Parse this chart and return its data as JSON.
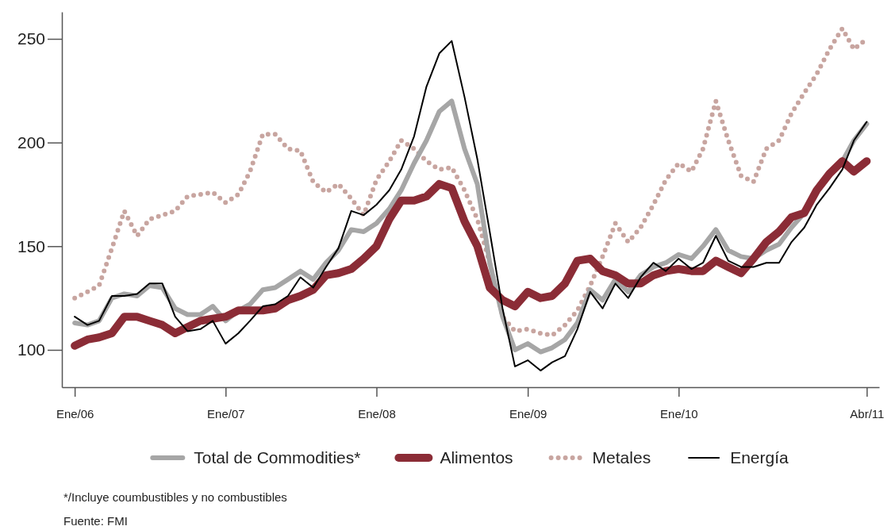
{
  "chart_data": {
    "type": "line",
    "x": [
      "2006-01",
      "2006-02",
      "2006-03",
      "2006-04",
      "2006-05",
      "2006-06",
      "2006-07",
      "2006-08",
      "2006-09",
      "2006-10",
      "2006-11",
      "2006-12",
      "2007-01",
      "2007-02",
      "2007-03",
      "2007-04",
      "2007-05",
      "2007-06",
      "2007-07",
      "2007-08",
      "2007-09",
      "2007-10",
      "2007-11",
      "2007-12",
      "2008-01",
      "2008-02",
      "2008-03",
      "2008-04",
      "2008-05",
      "2008-06",
      "2008-07",
      "2008-08",
      "2008-09",
      "2008-10",
      "2008-11",
      "2008-12",
      "2009-01",
      "2009-02",
      "2009-03",
      "2009-04",
      "2009-05",
      "2009-06",
      "2009-07",
      "2009-08",
      "2009-09",
      "2009-10",
      "2009-11",
      "2009-12",
      "2010-01",
      "2010-02",
      "2010-03",
      "2010-04",
      "2010-05",
      "2010-06",
      "2010-07",
      "2010-08",
      "2010-09",
      "2010-10",
      "2010-11",
      "2010-12",
      "2011-01",
      "2011-02",
      "2011-03",
      "2011-04"
    ],
    "series": [
      {
        "name": "Total de Commodities*",
        "color": "#a6a6a6",
        "line_style": "solid",
        "values": [
          113,
          112,
          114,
          125,
          127,
          126,
          131,
          130,
          120,
          117,
          117,
          121,
          114,
          119,
          122,
          129,
          130,
          134,
          138,
          134,
          142,
          148,
          158,
          157,
          161,
          168,
          177,
          190,
          201,
          215,
          220,
          197,
          180,
          142,
          116,
          100,
          103,
          99,
          101,
          105,
          113,
          129,
          124,
          134,
          128,
          136,
          140,
          142,
          146,
          144,
          150,
          158,
          148,
          145,
          144,
          148,
          151,
          159,
          166,
          176,
          184,
          191,
          201,
          209
        ]
      },
      {
        "name": "Alimentos",
        "color": "#8b2c36",
        "line_style": "solid",
        "values": [
          102,
          105,
          106,
          108,
          116,
          116,
          114,
          112,
          108,
          111,
          114,
          115,
          116,
          119,
          119,
          119,
          120,
          124,
          126,
          129,
          136,
          137,
          139,
          144,
          150,
          163,
          172,
          172,
          174,
          180,
          178,
          162,
          150,
          130,
          124,
          121,
          128,
          125,
          126,
          132,
          143,
          144,
          138,
          136,
          132,
          132,
          136,
          138,
          139,
          138,
          138,
          143,
          140,
          137,
          144,
          152,
          157,
          164,
          166,
          177,
          185,
          191,
          186,
          191
        ]
      },
      {
        "name": "Metales",
        "color": "#c8a5a0",
        "line_style": "dotted",
        "values": [
          125,
          128,
          131,
          149,
          167,
          155,
          163,
          165,
          167,
          174,
          175,
          176,
          171,
          175,
          186,
          204,
          204,
          197,
          196,
          181,
          176,
          180,
          173,
          165,
          182,
          191,
          201,
          197,
          191,
          187,
          188,
          177,
          163,
          142,
          116,
          109,
          110,
          108,
          107,
          112,
          119,
          131,
          145,
          161,
          152,
          159,
          170,
          182,
          190,
          186,
          197,
          220,
          201,
          184,
          181,
          197,
          201,
          214,
          224,
          233,
          245,
          255,
          245,
          250
        ]
      },
      {
        "name": "Energía",
        "color": "#000000",
        "line_style": "solid",
        "values": [
          116,
          112,
          114,
          126,
          126,
          127,
          132,
          132,
          116,
          109,
          110,
          114,
          103,
          108,
          114,
          121,
          122,
          126,
          135,
          130,
          140,
          149,
          167,
          165,
          170,
          177,
          187,
          203,
          227,
          243,
          249,
          222,
          192,
          157,
          120,
          92,
          95,
          90,
          94,
          97,
          110,
          128,
          120,
          132,
          125,
          135,
          142,
          138,
          144,
          139,
          142,
          155,
          143,
          140,
          140,
          142,
          142,
          152,
          159,
          170,
          178,
          187,
          201,
          210
        ]
      }
    ],
    "xlim": [
      "2005-12",
      "2011-05"
    ],
    "xticks": [
      {
        "value": "2006-01",
        "label": "Ene/06"
      },
      {
        "value": "2007-01",
        "label": "Ene/07"
      },
      {
        "value": "2008-01",
        "label": "Ene/08"
      },
      {
        "value": "2009-01",
        "label": "Ene/09"
      },
      {
        "value": "2010-01",
        "label": "Ene/10"
      },
      {
        "value": "2011-04",
        "label": "Abr/11"
      }
    ],
    "ylim": [
      82,
      263
    ],
    "yticks": [
      100,
      150,
      200,
      250
    ],
    "grid": false,
    "legend": "bottom",
    "marker": "none",
    "annotations": [
      "*/Incluye coumbustibles y no combustibles",
      "Fuente: FMI"
    ]
  }
}
